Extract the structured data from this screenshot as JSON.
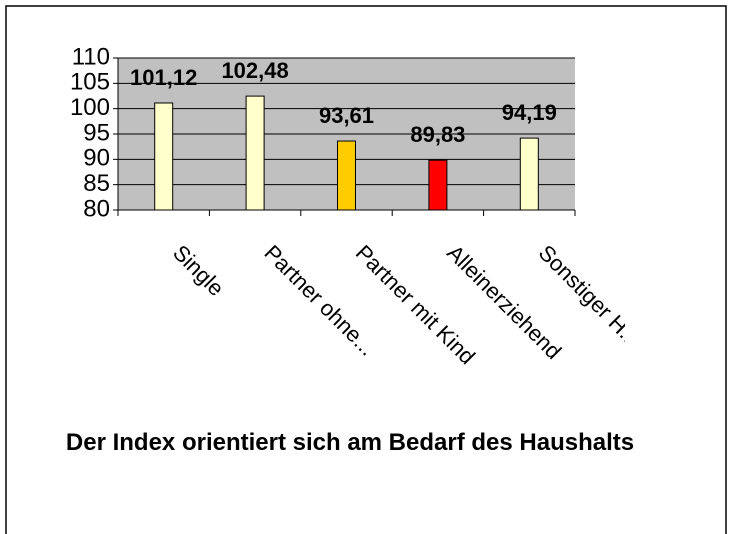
{
  "chart_data": {
    "type": "bar",
    "title": "Der Index orientiert sich am Bedarf des Haushalts",
    "categories": [
      "Single",
      "Partner ohne...",
      "Partner mit Kind",
      "Alleinerziehend",
      "Sonstiger H..."
    ],
    "values": [
      101.12,
      102.48,
      93.61,
      89.83,
      94.19
    ],
    "value_labels": [
      "101,12",
      "102,48",
      "93,61",
      "89,83",
      "94,19"
    ],
    "colors": [
      "#ffffcc",
      "#ffffcc",
      "#ffcc00",
      "#ff0000",
      "#ffffcc"
    ],
    "ylim": [
      80,
      110
    ],
    "yticks": [
      80,
      85,
      90,
      95,
      100,
      105,
      110
    ],
    "grid": true
  }
}
